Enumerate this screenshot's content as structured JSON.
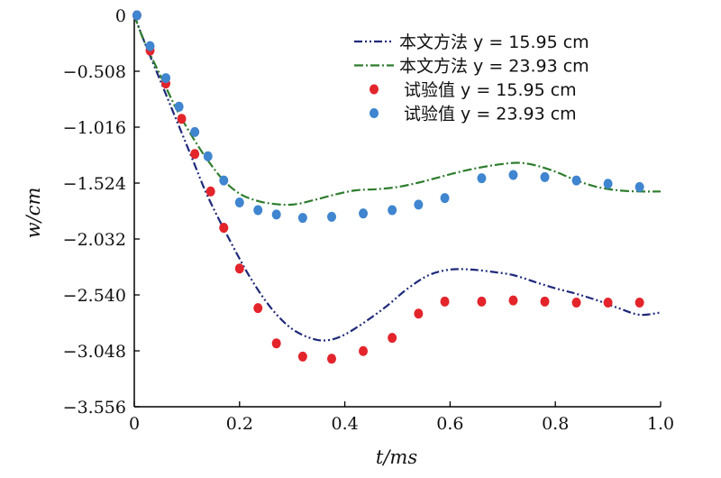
{
  "chart_data": {
    "type": "line",
    "xlabel": "t/ms",
    "ylabel": "w/cm",
    "xlim": [
      0,
      1.0
    ],
    "ylim": [
      -3.556,
      0
    ],
    "x_ticks": [
      "0",
      "0.2",
      "0.4",
      "0.6",
      "0.8",
      "1.0"
    ],
    "y_ticks": [
      "0",
      "-0.508",
      "-1.016",
      "-1.524",
      "-2.032",
      "-2.540",
      "-3.048",
      "-3.556"
    ],
    "legend_position": "top-right",
    "series": [
      {
        "name": "本文方法 y = 15.95 cm",
        "kind": "line",
        "style": "dash-dot-dot",
        "color": "#1f2a7a",
        "x": [
          0,
          0.02,
          0.05,
          0.08,
          0.11,
          0.14,
          0.18,
          0.22,
          0.26,
          0.3,
          0.34,
          0.37,
          0.4,
          0.44,
          0.48,
          0.52,
          0.56,
          0.6,
          0.64,
          0.68,
          0.72,
          0.76,
          0.8,
          0.84,
          0.88,
          0.92,
          0.96,
          1.0
        ],
        "y": [
          0,
          -0.25,
          -0.6,
          -0.95,
          -1.3,
          -1.65,
          -2.03,
          -2.38,
          -2.66,
          -2.85,
          -2.94,
          -2.95,
          -2.9,
          -2.78,
          -2.64,
          -2.48,
          -2.36,
          -2.31,
          -2.31,
          -2.33,
          -2.36,
          -2.42,
          -2.48,
          -2.53,
          -2.59,
          -2.66,
          -2.72,
          -2.7
        ]
      },
      {
        "name": "本文方法 y = 23.93 cm",
        "kind": "line",
        "style": "dash-dot",
        "color": "#2e7d2e",
        "x": [
          0,
          0.02,
          0.05,
          0.08,
          0.11,
          0.14,
          0.17,
          0.2,
          0.23,
          0.26,
          0.3,
          0.34,
          0.38,
          0.42,
          0.46,
          0.5,
          0.54,
          0.58,
          0.62,
          0.66,
          0.7,
          0.73,
          0.76,
          0.8,
          0.84,
          0.88,
          0.92,
          0.96,
          1.0
        ],
        "y": [
          0,
          -0.25,
          -0.55,
          -0.85,
          -1.1,
          -1.32,
          -1.5,
          -1.62,
          -1.68,
          -1.71,
          -1.72,
          -1.68,
          -1.63,
          -1.59,
          -1.58,
          -1.56,
          -1.52,
          -1.47,
          -1.42,
          -1.38,
          -1.35,
          -1.34,
          -1.36,
          -1.42,
          -1.5,
          -1.56,
          -1.59,
          -1.6,
          -1.6
        ]
      },
      {
        "name": "试验值 y = 15.95 cm",
        "kind": "scatter",
        "color": "#e3242b",
        "x": [
          0.005,
          0.03,
          0.06,
          0.09,
          0.115,
          0.145,
          0.17,
          0.2,
          0.235,
          0.27,
          0.32,
          0.375,
          0.435,
          0.49,
          0.54,
          0.59,
          0.66,
          0.72,
          0.78,
          0.84,
          0.9,
          0.96
        ],
        "y": [
          0,
          -0.32,
          -0.62,
          -0.94,
          -1.26,
          -1.6,
          -1.93,
          -2.3,
          -2.66,
          -2.98,
          -3.1,
          -3.12,
          -3.05,
          -2.93,
          -2.71,
          -2.6,
          -2.6,
          -2.59,
          -2.6,
          -2.61,
          -2.61,
          -2.61
        ]
      },
      {
        "name": "试验值 y = 23.93 cm",
        "kind": "scatter",
        "color": "#3f85cf",
        "x": [
          0.005,
          0.03,
          0.06,
          0.085,
          0.115,
          0.14,
          0.17,
          0.2,
          0.235,
          0.27,
          0.32,
          0.375,
          0.435,
          0.49,
          0.54,
          0.59,
          0.66,
          0.72,
          0.78,
          0.84,
          0.9,
          0.96
        ],
        "y": [
          0,
          -0.28,
          -0.57,
          -0.83,
          -1.06,
          -1.28,
          -1.5,
          -1.7,
          -1.77,
          -1.81,
          -1.84,
          -1.83,
          -1.8,
          -1.77,
          -1.72,
          -1.66,
          -1.48,
          -1.45,
          -1.47,
          -1.5,
          -1.53,
          -1.56
        ]
      }
    ]
  }
}
